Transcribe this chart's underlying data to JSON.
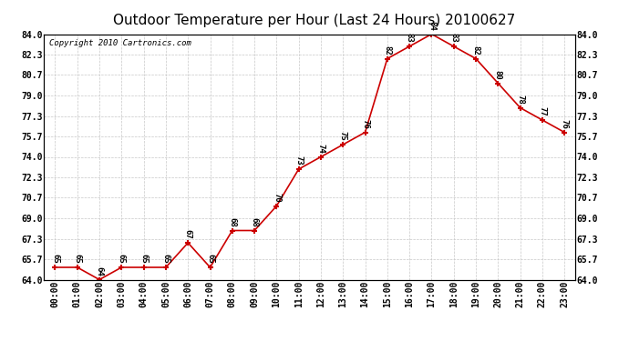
{
  "title": "Outdoor Temperature per Hour (Last 24 Hours) 20100627",
  "copyright": "Copyright 2010 Cartronics.com",
  "hours": [
    "00:00",
    "01:00",
    "02:00",
    "03:00",
    "04:00",
    "05:00",
    "06:00",
    "07:00",
    "08:00",
    "09:00",
    "10:00",
    "11:00",
    "12:00",
    "13:00",
    "14:00",
    "15:00",
    "16:00",
    "17:00",
    "18:00",
    "19:00",
    "20:00",
    "21:00",
    "22:00",
    "23:00"
  ],
  "temps": [
    65,
    65,
    64,
    65,
    65,
    65,
    67,
    65,
    68,
    68,
    70,
    73,
    74,
    75,
    76,
    82,
    83,
    84,
    83,
    82,
    80,
    78,
    77,
    76
  ],
  "line_color": "#cc0000",
  "marker_color": "#cc0000",
  "bg_color": "#ffffff",
  "grid_color": "#c8c8c8",
  "ylim_min": 64.0,
  "ylim_max": 84.0,
  "yticks": [
    64.0,
    65.7,
    67.3,
    69.0,
    70.7,
    72.3,
    74.0,
    75.7,
    77.3,
    79.0,
    80.7,
    82.3,
    84.0
  ],
  "title_fontsize": 11,
  "label_fontsize": 7,
  "annotation_fontsize": 6.5,
  "copyright_fontsize": 6.5
}
